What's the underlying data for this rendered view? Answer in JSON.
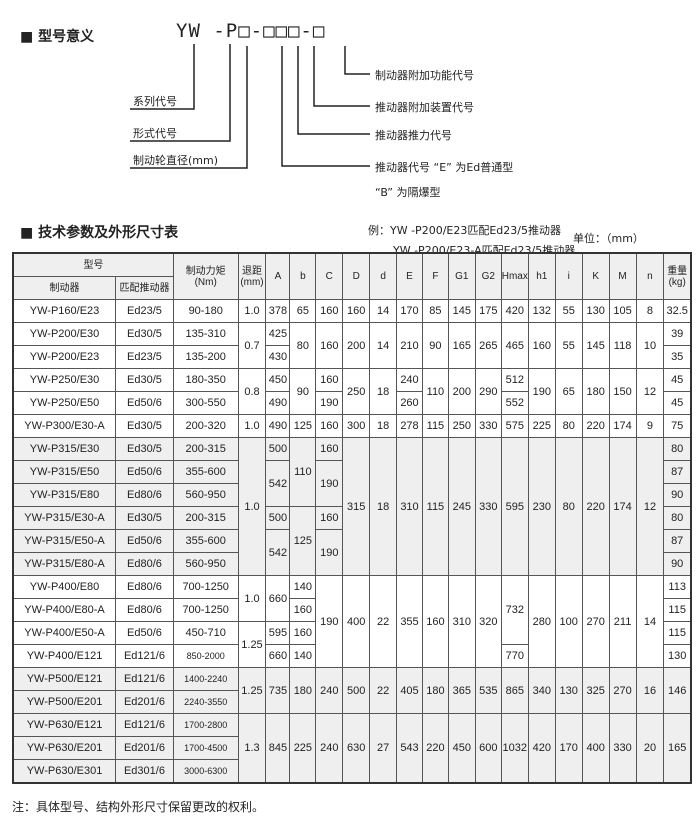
{
  "model_meaning": {
    "title": "■ 型号意义",
    "code": "YW -P□-□□□-□",
    "left_labels": [
      "系列代号",
      "形式代号",
      "制动轮直径(mm)"
    ],
    "right_labels": [
      "制动器附加功能代号",
      "推动器附加装置代号",
      "推动器推力代号",
      "推动器代号 “E” 为Ed普通型",
      "“B” 为隔爆型"
    ],
    "examples": [
      "例：YW -P200/E23匹配Ed23/5推动器",
      "YW -P200/E23-A匹配Ed23/5推动器"
    ]
  },
  "tech_table": {
    "title": "■ 技术参数及外形尺寸表",
    "unit": "单位：（mm）",
    "header": {
      "model": "型号",
      "brake": "制动器",
      "thruster": "匹配推动器",
      "torque": "制动力矩\n(Nm)",
      "clearance": "退距\n(mm)",
      "dims": [
        "A",
        "b",
        "C",
        "D",
        "d",
        "E",
        "F",
        "G1",
        "G2",
        "Hmax",
        "h1",
        "i",
        "K",
        "M",
        "n"
      ],
      "weight": "重量\n(kg)"
    },
    "rows": [
      [
        "YW-P160/E23",
        "Ed23/5",
        "90-180",
        "1.0",
        "378",
        "65",
        "160",
        "160",
        "14",
        "170",
        "85",
        "145",
        "175",
        "420",
        "132",
        "55",
        "130",
        "105",
        "8",
        "32.5"
      ],
      [
        "YW-P200/E30",
        "Ed30/5",
        "135-310",
        {
          "v": "0.7",
          "rs": 2
        },
        "425",
        {
          "v": "80",
          "rs": 2
        },
        {
          "v": "160",
          "rs": 2
        },
        {
          "v": "200",
          "rs": 2
        },
        {
          "v": "14",
          "rs": 2
        },
        {
          "v": "210",
          "rs": 2
        },
        {
          "v": "90",
          "rs": 2
        },
        {
          "v": "165",
          "rs": 2
        },
        {
          "v": "265",
          "rs": 2
        },
        {
          "v": "465",
          "rs": 2
        },
        {
          "v": "160",
          "rs": 2
        },
        {
          "v": "55",
          "rs": 2
        },
        {
          "v": "145",
          "rs": 2
        },
        {
          "v": "118",
          "rs": 2
        },
        {
          "v": "10",
          "rs": 2
        },
        "39"
      ],
      [
        "YW-P200/E23",
        "Ed23/5",
        "135-200",
        "430",
        "35"
      ],
      [
        "YW-P250/E30",
        "Ed30/5",
        "180-350",
        {
          "v": "0.8",
          "rs": 2
        },
        "450",
        {
          "v": "90",
          "rs": 2
        },
        "160",
        {
          "v": "250",
          "rs": 2
        },
        {
          "v": "18",
          "rs": 2
        },
        "240",
        {
          "v": "110",
          "rs": 2
        },
        {
          "v": "200",
          "rs": 2
        },
        {
          "v": "290",
          "rs": 2
        },
        "512",
        {
          "v": "190",
          "rs": 2
        },
        {
          "v": "65",
          "rs": 2
        },
        {
          "v": "180",
          "rs": 2
        },
        {
          "v": "150",
          "rs": 2
        },
        {
          "v": "12",
          "rs": 2
        },
        "45"
      ],
      [
        "YW-P250/E50",
        "Ed50/6",
        "300-550",
        "490",
        "190",
        "260",
        "552",
        "45"
      ],
      [
        "YW-P300/E30-A",
        "Ed30/5",
        "200-320",
        "1.0",
        "490",
        "125",
        "160",
        "300",
        "18",
        "278",
        "115",
        "250",
        "330",
        "575",
        "225",
        "80",
        "220",
        "174",
        "9",
        "75"
      ],
      [
        "YW-P315/E30",
        "Ed30/5",
        "200-315",
        {
          "v": "1.0",
          "rs": 6
        },
        "500",
        {
          "v": "110",
          "rs": 3
        },
        "160",
        {
          "v": "315",
          "rs": 6
        },
        {
          "v": "18",
          "rs": 6
        },
        {
          "v": "310",
          "rs": 6
        },
        {
          "v": "115",
          "rs": 6
        },
        {
          "v": "245",
          "rs": 6
        },
        {
          "v": "330",
          "rs": 6
        },
        {
          "v": "595",
          "rs": 6
        },
        {
          "v": "230",
          "rs": 6
        },
        {
          "v": "80",
          "rs": 6
        },
        {
          "v": "220",
          "rs": 6
        },
        {
          "v": "174",
          "rs": 6
        },
        {
          "v": "12",
          "rs": 6
        },
        "80"
      ],
      [
        "YW-P315/E50",
        "Ed50/6",
        "355-600",
        {
          "v": "542",
          "rs": 2
        },
        {
          "v": "190",
          "rs": 2
        },
        "87"
      ],
      [
        "YW-P315/E80",
        "Ed80/6",
        "560-950",
        "90"
      ],
      [
        "YW-P315/E30-A",
        "Ed30/5",
        "200-315",
        "500",
        {
          "v": "125",
          "rs": 3
        },
        "160",
        "80"
      ],
      [
        "YW-P315/E50-A",
        "Ed50/6",
        "355-600",
        {
          "v": "542",
          "rs": 2
        },
        {
          "v": "190",
          "rs": 2
        },
        "87"
      ],
      [
        "YW-P315/E80-A",
        "Ed80/6",
        "560-950",
        "90"
      ],
      [
        "YW-P400/E80",
        "Ed80/6",
        "700-1250",
        {
          "v": "1.0",
          "rs": 2
        },
        {
          "v": "660",
          "rs": 2
        },
        "140",
        {
          "v": "190",
          "rs": 4
        },
        {
          "v": "400",
          "rs": 4
        },
        {
          "v": "22",
          "rs": 4
        },
        {
          "v": "355",
          "rs": 4
        },
        {
          "v": "160",
          "rs": 4
        },
        {
          "v": "310",
          "rs": 4
        },
        {
          "v": "320",
          "rs": 4
        },
        {
          "v": "732",
          "rs": 3
        },
        {
          "v": "280",
          "rs": 4
        },
        {
          "v": "100",
          "rs": 4
        },
        {
          "v": "270",
          "rs": 4
        },
        {
          "v": "211",
          "rs": 4
        },
        {
          "v": "14",
          "rs": 4
        },
        "113"
      ],
      [
        "YW-P400/E80-A",
        "Ed80/6",
        "700-1250",
        "160",
        "115"
      ],
      [
        "YW-P400/E50-A",
        "Ed50/6",
        "450-710",
        {
          "v": "1.25",
          "rs": 2
        },
        "595",
        "160",
        "115"
      ],
      [
        "YW-P400/E121",
        "Ed121/6",
        "850-2000",
        "660",
        "140",
        "770",
        "130"
      ],
      [
        "YW-P500/E121",
        "Ed121/6",
        "1400-2240",
        {
          "v": "1.25",
          "rs": 2
        },
        {
          "v": "735",
          "rs": 2
        },
        {
          "v": "180",
          "rs": 2
        },
        {
          "v": "240",
          "rs": 2
        },
        {
          "v": "500",
          "rs": 2
        },
        {
          "v": "22",
          "rs": 2
        },
        {
          "v": "405",
          "rs": 2
        },
        {
          "v": "180",
          "rs": 2
        },
        {
          "v": "365",
          "rs": 2
        },
        {
          "v": "535",
          "rs": 2
        },
        {
          "v": "865",
          "rs": 2
        },
        {
          "v": "340",
          "rs": 2
        },
        {
          "v": "130",
          "rs": 2
        },
        {
          "v": "325",
          "rs": 2
        },
        {
          "v": "270",
          "rs": 2
        },
        {
          "v": "16",
          "rs": 2
        },
        {
          "v": "146",
          "rs": 2
        }
      ],
      [
        "YW-P500/E201",
        "Ed201/6",
        "2240-3550"
      ],
      [
        "YW-P630/E121",
        "Ed121/6",
        "1700-2800",
        {
          "v": "1.3",
          "rs": 3
        },
        {
          "v": "845",
          "rs": 3
        },
        {
          "v": "225",
          "rs": 3
        },
        {
          "v": "240",
          "rs": 3
        },
        {
          "v": "630",
          "rs": 3
        },
        {
          "v": "27",
          "rs": 3
        },
        {
          "v": "543",
          "rs": 3
        },
        {
          "v": "220",
          "rs": 3
        },
        {
          "v": "450",
          "rs": 3
        },
        {
          "v": "600",
          "rs": 3
        },
        {
          "v": "1032",
          "rs": 3
        },
        {
          "v": "420",
          "rs": 3
        },
        {
          "v": "170",
          "rs": 3
        },
        {
          "v": "400",
          "rs": 3
        },
        {
          "v": "330",
          "rs": 3
        },
        {
          "v": "20",
          "rs": 3
        },
        {
          "v": "165",
          "rs": 3
        }
      ],
      [
        "YW-P630/E201",
        "Ed201/6",
        "1700-4500"
      ],
      [
        "YW-P630/E301",
        "Ed301/6",
        "3000-6300"
      ]
    ]
  },
  "note": "注：具体型号、结构外形尺寸保留更改的权利。"
}
